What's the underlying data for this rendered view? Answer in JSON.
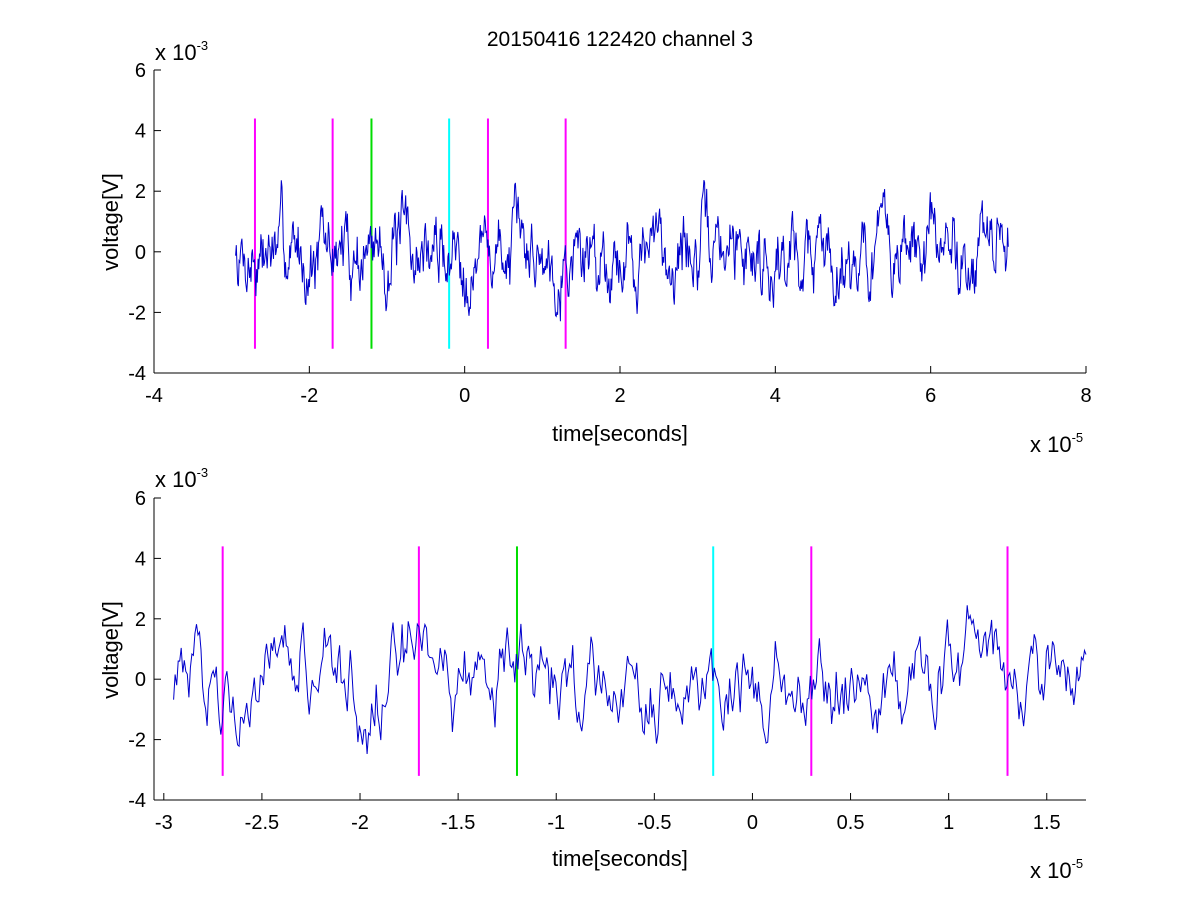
{
  "title": "20150416 122420 channel 3",
  "chart_data": [
    {
      "type": "line",
      "xlabel": "time[seconds]",
      "ylabel": "voltage[V]",
      "xlim": [
        -4e-05,
        8e-05
      ],
      "ylim": [
        -0.004,
        0.006
      ],
      "x_ticks": [
        -4,
        -2,
        0,
        2,
        4,
        6,
        8
      ],
      "x_tick_labels": [
        "-4",
        "-2",
        "0",
        "2",
        "4",
        "6",
        "8"
      ],
      "y_ticks": [
        -4,
        -2,
        0,
        2,
        4,
        6
      ],
      "y_tick_labels": [
        "-4",
        "-2",
        "0",
        "2",
        "4",
        "6"
      ],
      "x_exponent_base": "x 10",
      "x_exponent": "-5",
      "y_exponent_base": "x 10",
      "y_exponent": "-3",
      "grid": false,
      "series": [
        {
          "color": "#0000cc",
          "x_range": [
            -2.95e-05,
            7e-05
          ],
          "amplitude_v": 0.0011,
          "points": 1100
        }
      ],
      "markers": [
        {
          "x": -2.7e-05,
          "color": "#ff00ff",
          "y_range": [
            -0.0032,
            0.0044
          ]
        },
        {
          "x": -1.7e-05,
          "color": "#ff00ff",
          "y_range": [
            -0.0032,
            0.0044
          ]
        },
        {
          "x": -1.2e-05,
          "color": "#00dd00",
          "y_range": [
            -0.0032,
            0.0044
          ]
        },
        {
          "x": -2e-06,
          "color": "#00ffff",
          "y_range": [
            -0.0032,
            0.0044
          ]
        },
        {
          "x": 3e-06,
          "color": "#ff00ff",
          "y_range": [
            -0.0032,
            0.0044
          ]
        },
        {
          "x": 1.3e-05,
          "color": "#ff00ff",
          "y_range": [
            -0.0032,
            0.0044
          ]
        }
      ]
    },
    {
      "type": "line",
      "xlabel": "time[seconds]",
      "ylabel": "voltage[V]",
      "xlim": [
        -3.05e-05,
        1.7e-05
      ],
      "ylim": [
        -0.004,
        0.006
      ],
      "x_ticks": [
        -3,
        -2.5,
        -2,
        -1.5,
        -1,
        -0.5,
        0,
        0.5,
        1,
        1.5
      ],
      "x_tick_labels": [
        "-3",
        "-2.5",
        "-2",
        "-1.5",
        "-1",
        "-0.5",
        "0",
        "0.5",
        "1",
        "1.5"
      ],
      "y_ticks": [
        -4,
        -2,
        0,
        2,
        4,
        6
      ],
      "y_tick_labels": [
        "-4",
        "-2",
        "0",
        "2",
        "4",
        "6"
      ],
      "x_exponent_base": "x 10",
      "x_exponent": "-5",
      "y_exponent_base": "x 10",
      "y_exponent": "-3",
      "grid": false,
      "series": [
        {
          "color": "#0000cc",
          "x_range": [
            -2.95e-05,
            1.7e-05
          ],
          "amplitude_v": 0.0012,
          "points": 600
        }
      ],
      "markers": [
        {
          "x": -2.7e-05,
          "color": "#ff00ff",
          "y_range": [
            -0.0032,
            0.0044
          ]
        },
        {
          "x": -1.7e-05,
          "color": "#ff00ff",
          "y_range": [
            -0.0032,
            0.0044
          ]
        },
        {
          "x": -1.2e-05,
          "color": "#00dd00",
          "y_range": [
            -0.0032,
            0.0044
          ]
        },
        {
          "x": -2e-06,
          "color": "#00ffff",
          "y_range": [
            -0.0032,
            0.0044
          ]
        },
        {
          "x": 3e-06,
          "color": "#ff00ff",
          "y_range": [
            -0.0032,
            0.0044
          ]
        },
        {
          "x": 1.3e-05,
          "color": "#ff00ff",
          "y_range": [
            -0.0032,
            0.0044
          ]
        }
      ]
    }
  ]
}
